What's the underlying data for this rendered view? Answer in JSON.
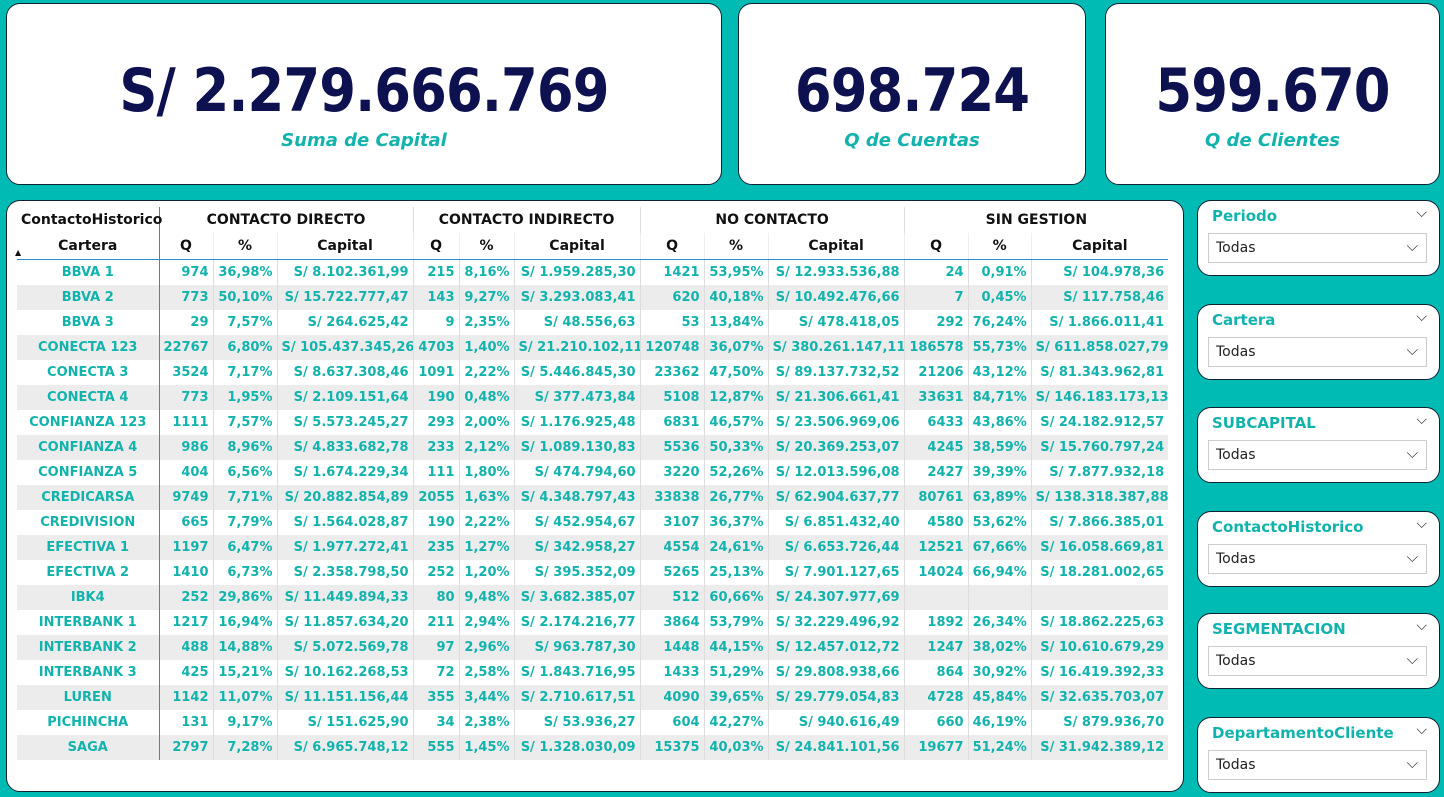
{
  "kpis": [
    {
      "value": "S/ 2.279.666.769",
      "label": "Suma de Capital"
    },
    {
      "value": "698.724",
      "label": "Q de Cuentas"
    },
    {
      "value": "599.670",
      "label": "Q de Clientes"
    }
  ],
  "table": {
    "corner_label": "ContactoHistorico",
    "row_header": "Cartera",
    "groups": [
      "CONTACTO DIRECTO",
      "CONTACTO INDIRECTO",
      "NO CONTACTO",
      "SIN GESTION"
    ],
    "subcolumns": [
      "Q",
      "%",
      "Capital"
    ],
    "rows": [
      [
        "BBVA 1",
        "974",
        "36,98%",
        "S/ 8.102.361,99",
        "215",
        "8,16%",
        "S/ 1.959.285,30",
        "1421",
        "53,95%",
        "S/ 12.933.536,88",
        "24",
        "0,91%",
        "S/ 104.978,36"
      ],
      [
        "BBVA 2",
        "773",
        "50,10%",
        "S/ 15.722.777,47",
        "143",
        "9,27%",
        "S/ 3.293.083,41",
        "620",
        "40,18%",
        "S/ 10.492.476,66",
        "7",
        "0,45%",
        "S/ 117.758,46"
      ],
      [
        "BBVA 3",
        "29",
        "7,57%",
        "S/ 264.625,42",
        "9",
        "2,35%",
        "S/ 48.556,63",
        "53",
        "13,84%",
        "S/ 478.418,05",
        "292",
        "76,24%",
        "S/ 1.866.011,41"
      ],
      [
        "CONECTA 123",
        "22767",
        "6,80%",
        "S/ 105.437.345,26",
        "4703",
        "1,40%",
        "S/ 21.210.102,11",
        "120748",
        "36,07%",
        "S/ 380.261.147,11",
        "186578",
        "55,73%",
        "S/ 611.858.027,79"
      ],
      [
        "CONECTA 3",
        "3524",
        "7,17%",
        "S/ 8.637.308,46",
        "1091",
        "2,22%",
        "S/ 5.446.845,30",
        "23362",
        "47,50%",
        "S/ 89.137.732,52",
        "21206",
        "43,12%",
        "S/ 81.343.962,81"
      ],
      [
        "CONECTA 4",
        "773",
        "1,95%",
        "S/ 2.109.151,64",
        "190",
        "0,48%",
        "S/ 377.473,84",
        "5108",
        "12,87%",
        "S/ 21.306.661,41",
        "33631",
        "84,71%",
        "S/ 146.183.173,13"
      ],
      [
        "CONFIANZA 123",
        "1111",
        "7,57%",
        "S/ 5.573.245,27",
        "293",
        "2,00%",
        "S/ 1.176.925,48",
        "6831",
        "46,57%",
        "S/ 23.506.969,06",
        "6433",
        "43,86%",
        "S/ 24.182.912,57"
      ],
      [
        "CONFIANZA 4",
        "986",
        "8,96%",
        "S/ 4.833.682,78",
        "233",
        "2,12%",
        "S/ 1.089.130,83",
        "5536",
        "50,33%",
        "S/ 20.369.253,07",
        "4245",
        "38,59%",
        "S/ 15.760.797,24"
      ],
      [
        "CONFIANZA 5",
        "404",
        "6,56%",
        "S/ 1.674.229,34",
        "111",
        "1,80%",
        "S/ 474.794,60",
        "3220",
        "52,26%",
        "S/ 12.013.596,08",
        "2427",
        "39,39%",
        "S/ 7.877.932,18"
      ],
      [
        "CREDICARSA",
        "9749",
        "7,71%",
        "S/ 20.882.854,89",
        "2055",
        "1,63%",
        "S/ 4.348.797,43",
        "33838",
        "26,77%",
        "S/ 62.904.637,77",
        "80761",
        "63,89%",
        "S/ 138.318.387,88"
      ],
      [
        "CREDIVISION",
        "665",
        "7,79%",
        "S/ 1.564.028,87",
        "190",
        "2,22%",
        "S/ 452.954,67",
        "3107",
        "36,37%",
        "S/ 6.851.432,40",
        "4580",
        "53,62%",
        "S/ 7.866.385,01"
      ],
      [
        "EFECTIVA 1",
        "1197",
        "6,47%",
        "S/ 1.977.272,41",
        "235",
        "1,27%",
        "S/ 342.958,27",
        "4554",
        "24,61%",
        "S/ 6.653.726,44",
        "12521",
        "67,66%",
        "S/ 16.058.669,81"
      ],
      [
        "EFECTIVA 2",
        "1410",
        "6,73%",
        "S/ 2.358.798,50",
        "252",
        "1,20%",
        "S/ 395.352,09",
        "5265",
        "25,13%",
        "S/ 7.901.127,65",
        "14024",
        "66,94%",
        "S/ 18.281.002,65"
      ],
      [
        "IBK4",
        "252",
        "29,86%",
        "S/ 11.449.894,33",
        "80",
        "9,48%",
        "S/ 3.682.385,07",
        "512",
        "60,66%",
        "S/ 24.307.977,69",
        "",
        "",
        ""
      ],
      [
        "INTERBANK 1",
        "1217",
        "16,94%",
        "S/ 11.857.634,20",
        "211",
        "2,94%",
        "S/ 2.174.216,77",
        "3864",
        "53,79%",
        "S/ 32.229.496,92",
        "1892",
        "26,34%",
        "S/ 18.862.225,63"
      ],
      [
        "INTERBANK 2",
        "488",
        "14,88%",
        "S/ 5.072.569,78",
        "97",
        "2,96%",
        "S/ 963.787,30",
        "1448",
        "44,15%",
        "S/ 12.457.012,72",
        "1247",
        "38,02%",
        "S/ 10.610.679,29"
      ],
      [
        "INTERBANK 3",
        "425",
        "15,21%",
        "S/ 10.162.268,53",
        "72",
        "2,58%",
        "S/ 1.843.716,95",
        "1433",
        "51,29%",
        "S/ 29.808.938,66",
        "864",
        "30,92%",
        "S/ 16.419.392,33"
      ],
      [
        "LUREN",
        "1142",
        "11,07%",
        "S/ 11.151.156,44",
        "355",
        "3,44%",
        "S/ 2.710.617,51",
        "4090",
        "39,65%",
        "S/ 29.779.054,83",
        "4728",
        "45,84%",
        "S/ 32.635.703,07"
      ],
      [
        "PICHINCHA",
        "131",
        "9,17%",
        "S/ 151.625,90",
        "34",
        "2,38%",
        "S/ 53.936,27",
        "604",
        "42,27%",
        "S/ 940.616,49",
        "660",
        "46,19%",
        "S/ 879.936,70"
      ],
      [
        "SAGA",
        "2797",
        "7,28%",
        "S/ 6.965.748,12",
        "555",
        "1,45%",
        "S/ 1.328.030,09",
        "15375",
        "40,03%",
        "S/ 24.841.101,56",
        "19677",
        "51,24%",
        "S/ 31.942.389,12"
      ]
    ]
  },
  "slicers": [
    {
      "title": "Periodo",
      "value": "Todas"
    },
    {
      "title": "Cartera",
      "value": "Todas"
    },
    {
      "title": "SUBCAPITAL",
      "value": "Todas"
    },
    {
      "title": "ContactoHistorico",
      "value": "Todas"
    },
    {
      "title": "SEGMENTACION",
      "value": "Todas"
    },
    {
      "title": "DepartamentoCliente",
      "value": "Todas"
    }
  ],
  "colors": {
    "background": "#00BAB4",
    "kpi_value": "#0d1150",
    "accent": "#12b3ad"
  }
}
